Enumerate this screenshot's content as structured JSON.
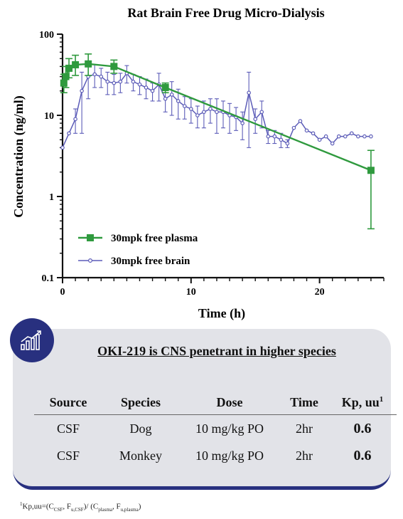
{
  "chart_data": {
    "type": "line",
    "title": "Rat Brain Free Drug Micro-Dialysis",
    "xlabel": "Time (h)",
    "ylabel": "Concentration (ng/ml)",
    "xlim": [
      0,
      25
    ],
    "ylim": [
      0.1,
      100
    ],
    "yscale": "log",
    "x_ticks": [
      0,
      10,
      20
    ],
    "y_ticks": [
      0.1,
      1,
      10,
      100
    ],
    "y_tick_labels": [
      "0.1",
      "1",
      "10",
      "100"
    ],
    "legend_position": "bottom-left",
    "grid": false,
    "series": [
      {
        "name": "30mpk free plasma",
        "color": "#2f9a3e",
        "marker": "square",
        "x": [
          0.1,
          0.25,
          0.5,
          1,
          2,
          4,
          8,
          24
        ],
        "y": [
          25,
          30,
          38,
          42,
          43,
          40,
          22,
          2.1
        ],
        "err_low": [
          19,
          22,
          29,
          31,
          31,
          33,
          19,
          0.4
        ],
        "err_high": [
          32,
          40,
          50,
          55,
          57,
          48,
          25,
          3.7
        ]
      },
      {
        "name": "30mpk free brain",
        "color": "#5c5cb8",
        "marker": "circle",
        "x": [
          0,
          0.5,
          1,
          1.5,
          2,
          2.5,
          3,
          3.5,
          4,
          4.5,
          5,
          5.5,
          6,
          6.5,
          7,
          7.5,
          8,
          8.5,
          9,
          9.5,
          10,
          10.5,
          11,
          11.5,
          12,
          12.5,
          13,
          13.5,
          14,
          14.5,
          15,
          15.5,
          16,
          16.5,
          17,
          17.5,
          18,
          18.5,
          19,
          19.5,
          20,
          20.5,
          21,
          21.5,
          22,
          22.5,
          23,
          23.5,
          24
        ],
        "y": [
          4,
          6,
          9,
          20,
          30,
          32,
          30,
          26,
          25,
          26,
          33,
          26,
          24,
          22,
          20,
          24,
          16,
          18,
          15,
          13,
          12,
          10,
          11,
          12,
          11,
          11,
          10,
          9.5,
          8,
          19,
          9,
          11,
          5.5,
          5.5,
          5,
          4.5,
          7,
          8.5,
          6.5,
          6,
          5,
          5.5,
          4.5,
          5.5,
          5.5,
          6,
          5.5,
          5.5,
          5.5
        ],
        "err": [
          0,
          0,
          3,
          14,
          14,
          10,
          8,
          8,
          7,
          7,
          8,
          6,
          6,
          6,
          5,
          9,
          5,
          8,
          6,
          4,
          4,
          3,
          4,
          4,
          5,
          4,
          4,
          3,
          3,
          15,
          3,
          4,
          1,
          1,
          1,
          0.5,
          0,
          0,
          0,
          0,
          0,
          0,
          0,
          0,
          0,
          0,
          0,
          0,
          0
        ]
      }
    ]
  },
  "table_card": {
    "title": "OKI-219 is CNS penetrant in higher species",
    "headers": {
      "source": "Source",
      "species": "Species",
      "dose": "Dose",
      "time": "Time",
      "kp": "Kp, uu",
      "kp_sup": "1"
    },
    "rows": [
      {
        "source": "CSF",
        "species": "Dog",
        "dose": "10 mg/kg PO",
        "time": "2hr",
        "kp": "0.6"
      },
      {
        "source": "CSF",
        "species": "Monkey",
        "dose": "10 mg/kg PO",
        "time": "2hr",
        "kp": "0.6"
      }
    ],
    "icon": "bar-chart-growth-icon",
    "accent_color": "#28307f",
    "card_color": "#e2e3e8"
  },
  "footnote": {
    "sup": "1",
    "text_a": "Kp,uu=(C",
    "sub_a": "CSF",
    "text_b": ", F",
    "sub_b": "u,CSF",
    "text_c": ")/ (C",
    "sub_c": "plasma",
    "text_d": ", F",
    "sub_d": "u,plasma",
    "text_e": ")"
  }
}
